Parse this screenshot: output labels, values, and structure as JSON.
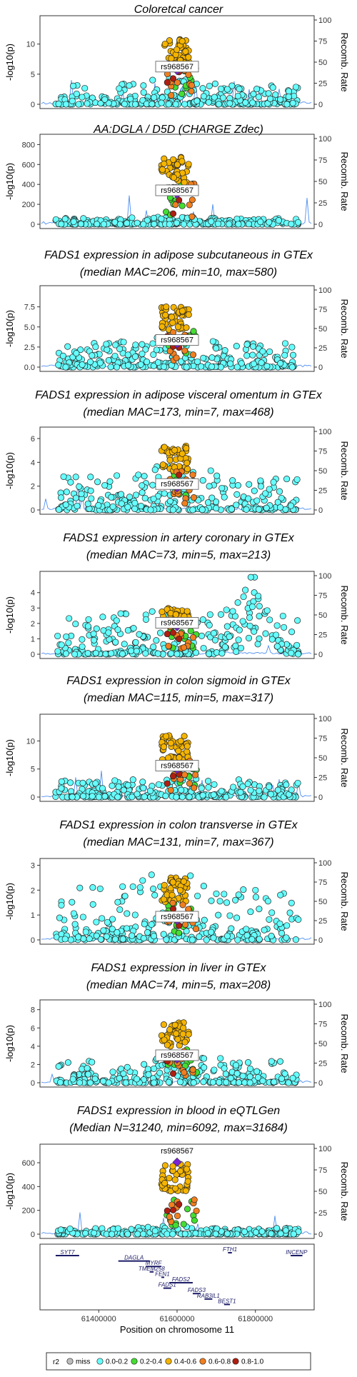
{
  "chart_data": [
    {
      "type": "scatter",
      "title": "Coloretcal cancer",
      "subtitle": "",
      "ylabel": "-log10(p)",
      "y2label": "Recomb. Rate",
      "ylim": [
        0,
        14
      ],
      "yticks": [
        0,
        5,
        10
      ],
      "y2ticks": [
        0,
        25,
        50,
        75,
        100
      ],
      "lead_snp": "rs968567",
      "peak": 10.8,
      "bg": 3.2,
      "decay": 1.0,
      "spread": 0.55,
      "seed": 11,
      "lead_y": 0.4,
      "recomb": "low"
    },
    {
      "type": "scatter",
      "title": "AA:DGLA / D5D (CHARGE Zdec)",
      "subtitle": "",
      "ylabel": "-log10(p)",
      "y2label": "Recomb. Rate",
      "ylim": [
        0,
        860
      ],
      "yticks": [
        0,
        200,
        400,
        600,
        800
      ],
      "y2ticks": [
        0,
        25,
        50,
        75,
        100
      ],
      "lead_snp": "rs968567",
      "peak": 680,
      "bg": 60,
      "decay": 1.1,
      "spread": 0.5,
      "seed": 23,
      "lead_y": 0.35,
      "recomb": "low"
    },
    {
      "type": "scatter",
      "title": "FADS1 expression in adipose subcutaneous in GTEx",
      "subtitle": "(median MAC=206, min=10, max=580)",
      "ylabel": "-log10(p)",
      "y2label": "Recomb. Rate",
      "ylim": [
        0,
        9.6
      ],
      "yticks": [
        0,
        2.5,
        5.0,
        7.5
      ],
      "ytick_labels": [
        "0.0",
        "2.5",
        "5.0",
        "7.5"
      ],
      "y2ticks": [
        0,
        25,
        50,
        75,
        100
      ],
      "lead_snp": "rs968567",
      "peak": 7.5,
      "bg": 3.0,
      "decay": 0.8,
      "spread": 0.6,
      "seed": 37,
      "lead_y": 0.3,
      "recomb": "none"
    },
    {
      "type": "scatter",
      "title": "FADS1 expression in adipose visceral omentum in GTEx",
      "subtitle": "(median MAC=173, min=7, max=468)",
      "ylabel": "-log10(p)",
      "y2label": "Recomb. Rate",
      "ylim": [
        0,
        6.6
      ],
      "yticks": [
        0,
        2,
        4,
        6
      ],
      "y2ticks": [
        0,
        25,
        50,
        75,
        100
      ],
      "lead_snp": "rs968567",
      "peak": 5.4,
      "bg": 2.8,
      "decay": 0.7,
      "spread": 0.6,
      "seed": 41,
      "lead_y": 0.28,
      "recomb": "low"
    },
    {
      "type": "scatter",
      "title": "FADS1 expression in artery coronary in GTEx",
      "subtitle": "(median MAC=73, min=5, max=213)",
      "ylabel": "-log10(p)",
      "y2label": "Recomb. Rate",
      "ylim": [
        0,
        5.1
      ],
      "yticks": [
        0,
        1,
        2,
        3,
        4
      ],
      "y2ticks": [
        0,
        25,
        50,
        75,
        100
      ],
      "lead_snp": "rs968567",
      "peak": 3.0,
      "bg": 2.6,
      "decay": 0.4,
      "spread": 0.8,
      "seed": 53,
      "lead_y": 0.35,
      "recomb": "none",
      "right_hump": 4.4
    },
    {
      "type": "scatter",
      "title": "FADS1 expression in colon sigmoid in GTEx",
      "subtitle": "(median MAC=115, min=5, max=317)",
      "ylabel": "-log10(p)",
      "y2label": "Recomb. Rate",
      "ylim": [
        0,
        14
      ],
      "yticks": [
        0,
        5,
        10
      ],
      "y2ticks": [
        0,
        25,
        50,
        75,
        100
      ],
      "lead_snp": "rs968567",
      "peak": 11.0,
      "bg": 3.0,
      "decay": 0.9,
      "spread": 0.55,
      "seed": 67,
      "lead_y": 0.35,
      "recomb": "low"
    },
    {
      "type": "scatter",
      "title": "FADS1 expression in colon transverse in GTEx",
      "subtitle": "(median MAC=131, min=7, max=367)",
      "ylabel": "-log10(p)",
      "y2label": "Recomb. Rate",
      "ylim": [
        0,
        3.1
      ],
      "yticks": [
        0,
        1,
        2,
        3
      ],
      "y2ticks": [
        0,
        25,
        50,
        75,
        100
      ],
      "lead_snp": "rs968567",
      "peak": 2.5,
      "bg": 2.1,
      "decay": 0.3,
      "spread": 0.9,
      "seed": 79,
      "lead_y": 0.25,
      "recomb": "none"
    },
    {
      "type": "scatter",
      "title": "FADS1 expression in liver in GTEx",
      "subtitle": "(median MAC=74, min=5, max=208)",
      "ylabel": "-log10(p)",
      "y2label": "Recomb. Rate",
      "ylim": [
        0,
        8.6
      ],
      "yticks": [
        0,
        2,
        4,
        6,
        8
      ],
      "y2ticks": [
        0,
        25,
        50,
        75,
        100
      ],
      "lead_snp": "rs968567",
      "peak": 6.6,
      "bg": 2.4,
      "decay": 0.8,
      "spread": 0.6,
      "seed": 83,
      "lead_y": 0.3,
      "recomb": "none"
    },
    {
      "type": "scatter",
      "title": "FADS1 expression in blood in eQTLGen",
      "subtitle": "(Median N=31240, min=6092, max=31684)",
      "ylabel": "-log10(p)",
      "y2label": "Recomb. Rate",
      "ylim": [
        0,
        720
      ],
      "yticks": [
        0,
        200,
        400,
        600
      ],
      "y2ticks": [
        0,
        25,
        50,
        75,
        100
      ],
      "lead_snp": "rs968567",
      "peak": 600,
      "bg": 50,
      "decay": 1.1,
      "spread": 0.5,
      "seed": 97,
      "lead_y": 0.84,
      "recomb": "low",
      "label_above": true
    }
  ],
  "genes": [
    {
      "name": "SYT7",
      "start": 61290000,
      "end": 61350000,
      "row": 0
    },
    {
      "name": "FTH1",
      "start": 61730000,
      "end": 61740000,
      "row": -1
    },
    {
      "name": "INCENP",
      "start": 61890000,
      "end": 61920000,
      "row": 0
    },
    {
      "name": "DAGLA",
      "start": 61450000,
      "end": 61530000,
      "row": 1
    },
    {
      "name": "MYRF",
      "start": 61520000,
      "end": 61560000,
      "row": 2
    },
    {
      "name": "TMEM258",
      "start": 61530000,
      "end": 61540000,
      "row": 3
    },
    {
      "name": "FEN1",
      "start": 61560000,
      "end": 61565000,
      "row": 4
    },
    {
      "name": "FADS2",
      "start": 61580000,
      "end": 61640000,
      "row": 5
    },
    {
      "name": "FADS1",
      "start": 61565000,
      "end": 61585000,
      "row": 6
    },
    {
      "name": "FADS3",
      "start": 61640000,
      "end": 61660000,
      "row": 7
    },
    {
      "name": "RAB3IL1",
      "start": 61670000,
      "end": 61690000,
      "row": 8
    },
    {
      "name": "BEST1",
      "start": 61720000,
      "end": 61735000,
      "row": 9
    }
  ],
  "x_axis": {
    "label": "Position on chromosome 11",
    "range": [
      61250000,
      61950000
    ],
    "ticks": [
      61400000,
      61600000,
      61800000
    ],
    "tick_labels": [
      "61400000",
      "61600000",
      "61800000"
    ]
  },
  "legend": {
    "title": "r2",
    "entries": [
      {
        "label": "miss",
        "color": "#bdbdbd"
      },
      {
        "label": "0.0-0.2",
        "color": "#66ffff"
      },
      {
        "label": "0.2-0.4",
        "color": "#44dd33"
      },
      {
        "label": "0.4-0.6",
        "color": "#f5b400"
      },
      {
        "label": "0.6-0.8",
        "color": "#f07f20"
      },
      {
        "label": "0.8-1.0",
        "color": "#b01e10"
      }
    ]
  },
  "colors": {
    "lead": "#7a22d6",
    "recomb": "#4f8ff0",
    "frame": "#333333"
  }
}
